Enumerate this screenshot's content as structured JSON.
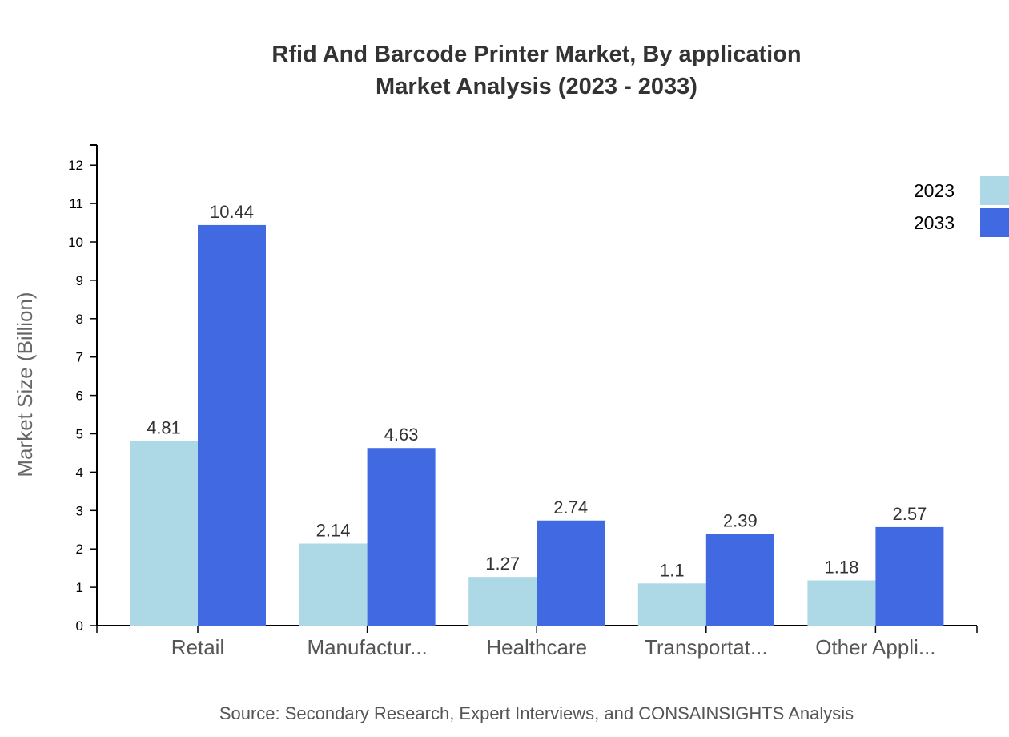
{
  "chart_data": {
    "type": "bar",
    "title": "Rfid And Barcode Printer Market, By application",
    "subtitle": "Market Analysis (2023 - 2033)",
    "xlabel": "",
    "ylabel": "Market Size (Billion)",
    "ylim": [
      0,
      12.5
    ],
    "yticks": [
      0,
      1,
      2,
      3,
      4,
      5,
      6,
      7,
      8,
      9,
      10,
      11,
      12
    ],
    "grid": false,
    "legend_position": "top-right",
    "categories": [
      "Retail",
      "Manufactur...",
      "Healthcare",
      "Transportat...",
      "Other Appli..."
    ],
    "series": [
      {
        "name": "2023",
        "color": "#add8e6",
        "values": [
          4.81,
          2.14,
          1.27,
          1.1,
          1.18
        ]
      },
      {
        "name": "2033",
        "color": "#4169e1",
        "values": [
          10.44,
          4.63,
          2.74,
          2.39,
          2.57
        ]
      }
    ],
    "source": "Source: Secondary Research, Expert Interviews, and CONSAINSIGHTS Analysis"
  }
}
